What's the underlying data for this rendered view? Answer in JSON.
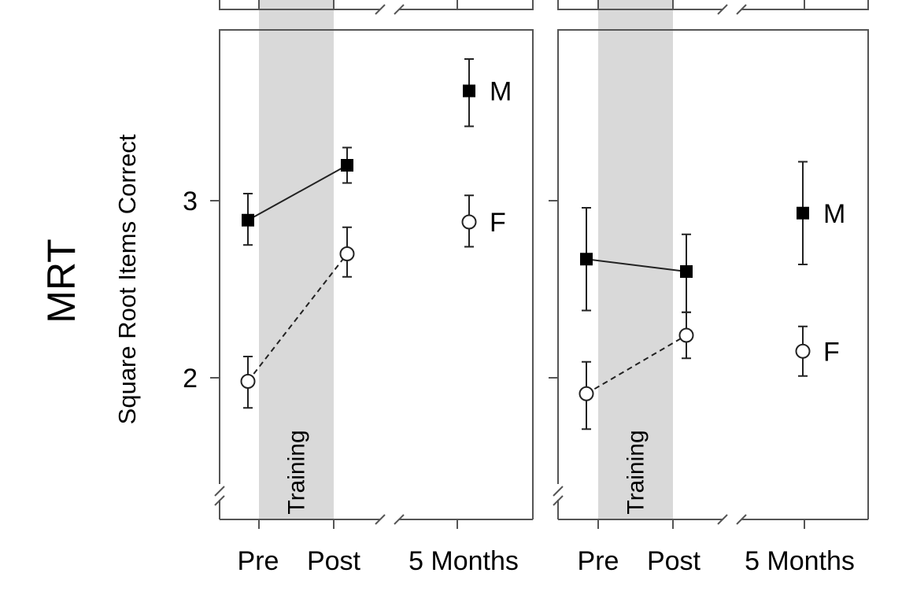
{
  "figure": {
    "row_label": "MRT",
    "ylabel": "Square Root Items Correct",
    "shade_label": "Training"
  },
  "chart_data": [
    {
      "type": "line",
      "panel": "left",
      "categories": [
        "Pre",
        "Post",
        "5 Months"
      ],
      "y_ticks": [
        "2",
        "3"
      ],
      "ylim": [
        1.2,
        4.0
      ],
      "shaded_region": "Pre to Post",
      "series": [
        {
          "name": "M",
          "marker": "filled-square",
          "line": "solid",
          "values": [
            2.89,
            3.2,
            3.62
          ],
          "err_low": [
            2.75,
            3.1,
            3.42
          ],
          "err_high": [
            3.04,
            3.3,
            3.8
          ],
          "connected_points": 2
        },
        {
          "name": "F",
          "marker": "open-circle",
          "line": "dashed",
          "values": [
            1.98,
            2.7,
            2.88
          ],
          "err_low": [
            1.83,
            2.57,
            2.74
          ],
          "err_high": [
            2.12,
            2.85,
            3.03
          ],
          "connected_points": 2
        }
      ]
    },
    {
      "type": "line",
      "panel": "right",
      "categories": [
        "Pre",
        "Post",
        "5 Months"
      ],
      "y_ticks": [
        "",
        ""
      ],
      "ylim": [
        1.2,
        4.0
      ],
      "shaded_region": "Pre to Post",
      "series": [
        {
          "name": "M",
          "marker": "filled-square",
          "line": "solid",
          "values": [
            2.67,
            2.6,
            2.93
          ],
          "err_low": [
            2.38,
            2.37,
            2.64
          ],
          "err_high": [
            2.96,
            2.81,
            3.22
          ],
          "connected_points": 2
        },
        {
          "name": "F",
          "marker": "open-circle",
          "line": "dashed",
          "values": [
            1.91,
            2.24,
            2.15
          ],
          "err_low": [
            1.71,
            2.11,
            2.01
          ],
          "err_high": [
            2.09,
            2.37,
            2.29
          ],
          "connected_points": 2
        }
      ]
    }
  ]
}
